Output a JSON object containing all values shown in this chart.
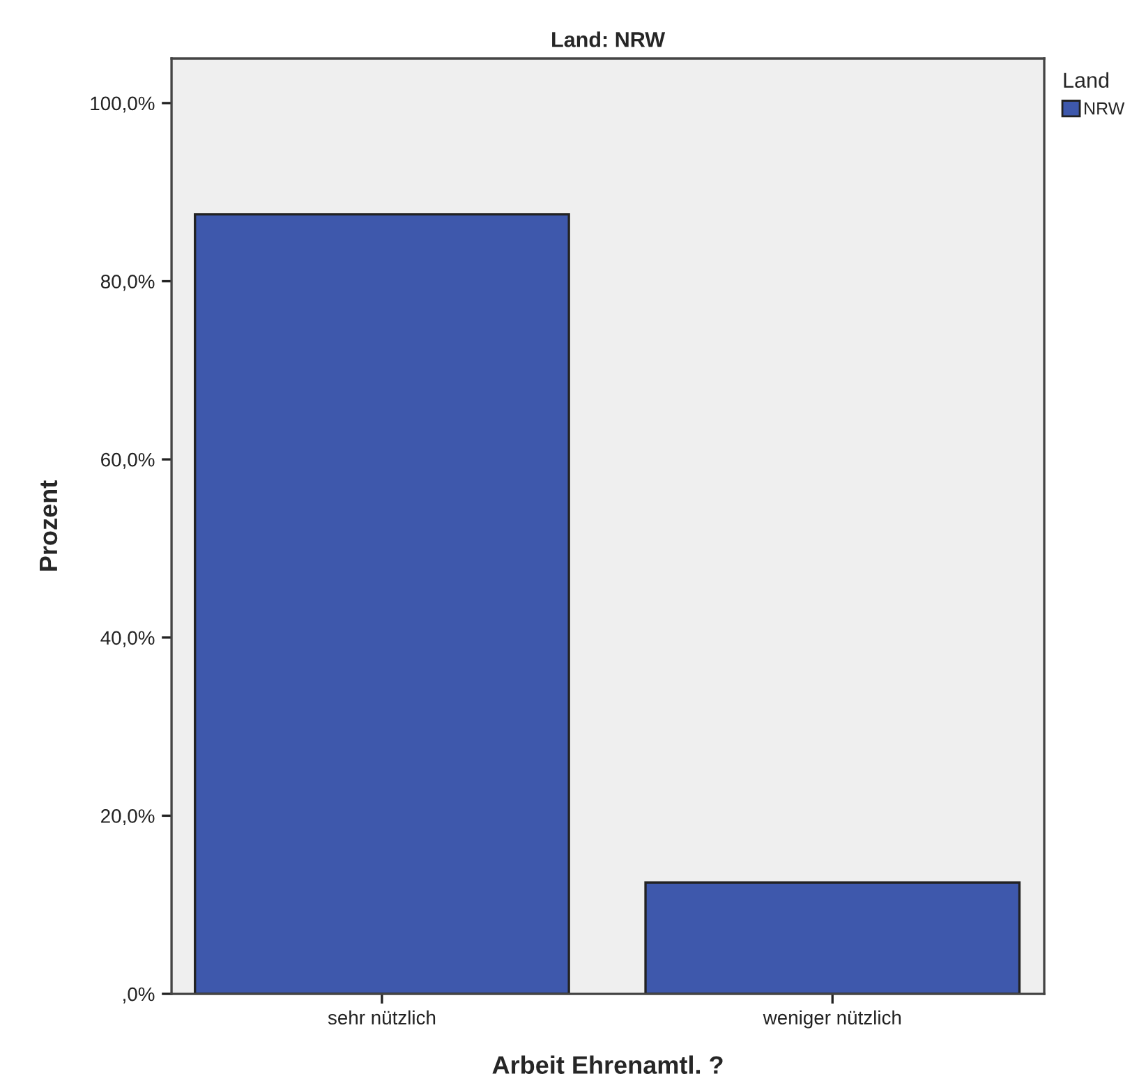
{
  "chart_data": {
    "type": "bar",
    "title": "Land: NRW",
    "xlabel": "Arbeit Ehrenamtl. ?",
    "ylabel": "Prozent",
    "legend_title": "Land",
    "categories": [
      "sehr nützlich",
      "weniger nützlich"
    ],
    "series": [
      {
        "name": "NRW",
        "color": "#3e58ac",
        "values": [
          87.5,
          12.5
        ]
      }
    ],
    "ylim": [
      0,
      105
    ],
    "yticks": [
      {
        "value": 0,
        "label": ",0%"
      },
      {
        "value": 20,
        "label": "20,0%"
      },
      {
        "value": 40,
        "label": "40,0%"
      },
      {
        "value": 60,
        "label": "60,0%"
      },
      {
        "value": 80,
        "label": "80,0%"
      },
      {
        "value": 100,
        "label": "100,0%"
      }
    ],
    "grid": false,
    "legend": "top right"
  }
}
